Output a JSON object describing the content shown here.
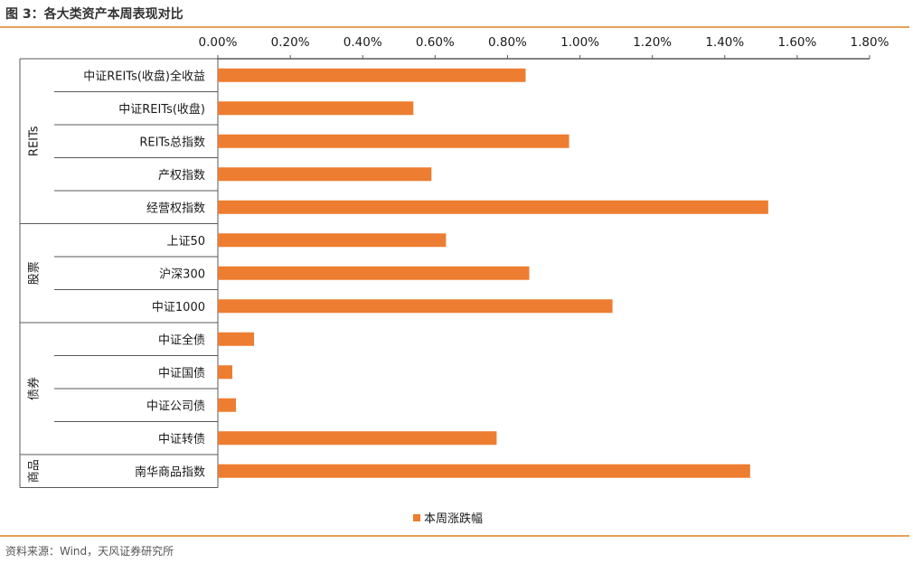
{
  "figure_title": "图 3：各大类资产本周表现对比",
  "source_note": "资料来源：Wind，天风证券研究所",
  "colors": {
    "bar": "#ED7D31",
    "axis": "#595959",
    "rule": "#E8A05A"
  },
  "chart_data": {
    "type": "bar",
    "orientation": "horizontal",
    "title": "",
    "xlabel": "",
    "ylabel": "",
    "xlim": [
      0,
      1.8
    ],
    "x_ticks": [
      "0.00%",
      "0.20%",
      "0.40%",
      "0.60%",
      "0.80%",
      "1.00%",
      "1.20%",
      "1.40%",
      "1.60%",
      "1.80%"
    ],
    "x_axis_position": "top",
    "grid": false,
    "legend": {
      "position": "bottom-center",
      "entries": [
        "本周涨跌幅"
      ]
    },
    "categories": [
      "中证REITs(收盘)全收益",
      "中证REITs(收盘)",
      "REITs总指数",
      "产权指数",
      "经营权指数",
      "上证50",
      "沪深300",
      "中证1000",
      "中证全债",
      "中证国债",
      "中证公司债",
      "中证转债",
      "南华商品指数"
    ],
    "groups": [
      {
        "name": "REITs",
        "count": 5
      },
      {
        "name": "股票",
        "count": 3
      },
      {
        "name": "债券",
        "count": 4
      },
      {
        "name": "商品",
        "count": 1
      }
    ],
    "series": [
      {
        "name": "本周涨跌幅",
        "values": [
          0.85,
          0.54,
          0.97,
          0.59,
          1.52,
          0.63,
          0.86,
          1.09,
          0.1,
          0.04,
          0.05,
          0.77,
          1.47
        ]
      }
    ]
  }
}
